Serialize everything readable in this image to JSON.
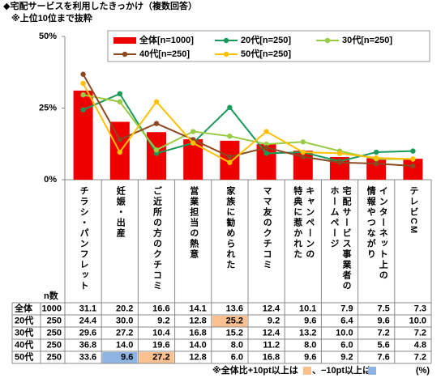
{
  "title": "◆宅配サービスを利用したきっかけ（複数回答）",
  "subtitle": "※上位10位まで抜粋",
  "chart_data": {
    "type": "bar_line",
    "categories": [
      "チラシ・パンフレット",
      "妊娠・出産",
      "ご近所の方のクチコミ",
      "営業担当の熱意",
      "家族に勧められた",
      "ママ友のクチコミ",
      "キャンペーンの\n特典に惹かれた",
      "宅配サービス事業者の\nホームページ",
      "インターネット上の\n情報やつながり",
      "テレビCM"
    ],
    "ylim": [
      0,
      50
    ],
    "yticks": [
      {
        "value": 0,
        "label": "0%"
      },
      {
        "value": 25,
        "label": "25%"
      },
      {
        "value": 50,
        "label": "50%"
      }
    ],
    "n_label": "n数",
    "series": [
      {
        "name": "全体",
        "legend_label": "全体[n=1000]",
        "n": 1000,
        "type": "bar",
        "color": "#ee0000",
        "values": [
          31.1,
          20.2,
          16.6,
          14.1,
          13.6,
          12.4,
          10.1,
          7.9,
          7.5,
          7.3
        ],
        "value_labels": [
          "31.1",
          "20.2",
          "16.6",
          "14.1",
          "13.6",
          "12.4",
          "10.1",
          "7.9",
          "7.5",
          "7.3"
        ]
      },
      {
        "name": "20代",
        "legend_label": "20代[n=250]",
        "n": 250,
        "type": "line",
        "color": "#1a9a5a",
        "values": [
          24.4,
          30.0,
          9.2,
          12.8,
          25.2,
          9.2,
          9.6,
          6.4,
          9.6,
          10.0
        ],
        "value_labels": [
          "24.4",
          "30.0",
          "9.2",
          "12.8",
          "25.2",
          "9.2",
          "9.6",
          "6.4",
          "9.6",
          "10.0"
        ]
      },
      {
        "name": "30代",
        "legend_label": "30代[n=250]",
        "n": 250,
        "type": "line",
        "color": "#99cc44",
        "values": [
          29.6,
          27.2,
          10.4,
          16.8,
          15.2,
          12.4,
          13.2,
          10.0,
          7.2,
          7.2
        ],
        "value_labels": [
          "29.6",
          "27.2",
          "10.4",
          "16.8",
          "15.2",
          "12.4",
          "13.2",
          "10.0",
          "7.2",
          "7.2"
        ]
      },
      {
        "name": "40代",
        "legend_label": "40代[n=250]",
        "n": 250,
        "type": "line",
        "color": "#8b4a22",
        "values": [
          36.8,
          14.0,
          19.6,
          14.0,
          8.0,
          11.2,
          8.0,
          6.0,
          5.6,
          4.8
        ],
        "value_labels": [
          "36.8",
          "14.0",
          "19.6",
          "14.0",
          "8.0",
          "11.2",
          "8.0",
          "6.0",
          "5.6",
          "4.8"
        ]
      },
      {
        "name": "50代",
        "legend_label": "50代[n=250]",
        "n": 250,
        "type": "line",
        "color": "#ffc000",
        "values": [
          33.6,
          9.6,
          27.2,
          12.8,
          6.0,
          16.8,
          9.6,
          9.2,
          7.6,
          7.2
        ],
        "value_labels": [
          "33.6",
          "9.6",
          "27.2",
          "12.8",
          "6.0",
          "16.8",
          "9.6",
          "9.2",
          "7.6",
          "7.2"
        ]
      }
    ],
    "highlight_threshold": 10,
    "highlight_high_color": "#fac090",
    "highlight_low_color": "#8eb4e3",
    "note_high": "※全体比+10pt以上は",
    "note_low": "、−10pt以上は",
    "unit_note": "(%)"
  }
}
